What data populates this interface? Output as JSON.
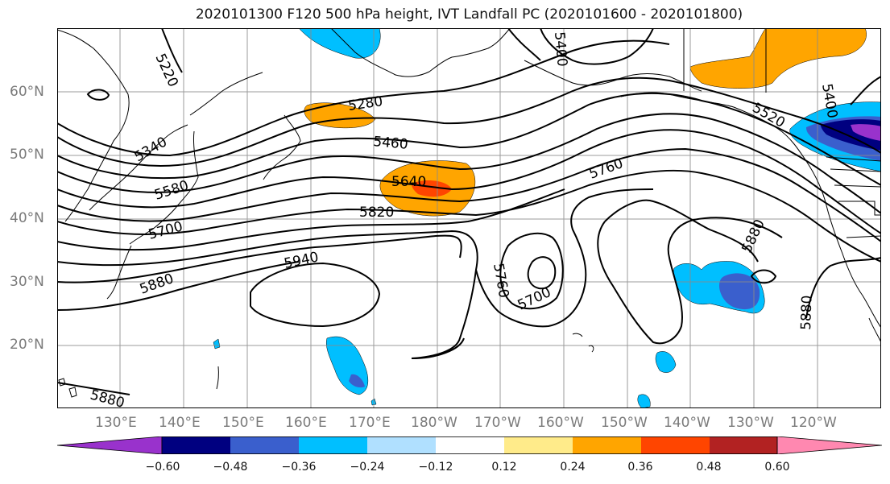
{
  "title": "2020101300 F120 500 hPa height, IVT Landfall PC (2020101600 - 2020101800)",
  "lat_labels": [
    "60°N",
    "50°N",
    "40°N",
    "30°N",
    "20°N"
  ],
  "lon_labels": [
    "130°E",
    "140°E",
    "150°E",
    "160°E",
    "170°E",
    "180°W",
    "170°W",
    "160°W",
    "150°W",
    "140°W",
    "130°W",
    "120°W"
  ],
  "contour_labels": [
    "5220",
    "5280",
    "5340",
    "5400",
    "5400",
    "5460",
    "5520",
    "5580",
    "5640",
    "5700",
    "5700",
    "5760",
    "5760",
    "5820",
    "5880",
    "5880",
    "5880",
    "5880",
    "5940"
  ],
  "colorbar": {
    "ticks": [
      "−0.60",
      "−0.48",
      "−0.36",
      "−0.24",
      "−0.12",
      "0.12",
      "0.24",
      "0.36",
      "0.48",
      "0.60"
    ],
    "colors": [
      "#9932cc",
      "#000080",
      "#3a5fcd",
      "#00bfff",
      "#b0e0ff",
      "#ffffff",
      "#ffeb8a",
      "#ffa500",
      "#ff4500",
      "#b22222",
      "#ff88b0"
    ]
  }
}
